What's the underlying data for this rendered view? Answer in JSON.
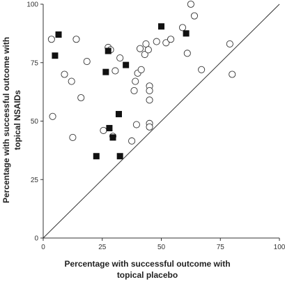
{
  "chart_data": {
    "type": "scatter",
    "xlabel": [
      "Percentage with successful outcome with",
      "topical placebo"
    ],
    "ylabel": [
      "Percentage with successful outcome with",
      "topical NSAIDs"
    ],
    "xlim": [
      0,
      100
    ],
    "ylim": [
      0,
      100
    ],
    "x_ticks": [
      0,
      25,
      50,
      75,
      100
    ],
    "y_ticks": [
      0,
      25,
      50,
      75,
      100
    ],
    "grid": false,
    "reference_line": {
      "from": [
        0,
        0
      ],
      "to": [
        100,
        100
      ],
      "color": "#333333"
    },
    "series": [
      {
        "marker": "open-circle",
        "color": "#333333",
        "points": [
          [
            3.5,
            85
          ],
          [
            4,
            52
          ],
          [
            9,
            70
          ],
          [
            12,
            67
          ],
          [
            12.5,
            43
          ],
          [
            14,
            85
          ],
          [
            16,
            60
          ],
          [
            18.5,
            75.5
          ],
          [
            25.5,
            46
          ],
          [
            27.5,
            81.5
          ],
          [
            28.5,
            80.5
          ],
          [
            29.5,
            43.5
          ],
          [
            30.5,
            71.5
          ],
          [
            32.5,
            77
          ],
          [
            37.5,
            41.5
          ],
          [
            38.5,
            63
          ],
          [
            39,
            67
          ],
          [
            39.5,
            48.5
          ],
          [
            40,
            70.5
          ],
          [
            41,
            81
          ],
          [
            41.5,
            72
          ],
          [
            43,
            78.5
          ],
          [
            43.5,
            83
          ],
          [
            44.5,
            80.5
          ],
          [
            45,
            65
          ],
          [
            45,
            63
          ],
          [
            45,
            59
          ],
          [
            45,
            49
          ],
          [
            45,
            47.5
          ],
          [
            48,
            84
          ],
          [
            52,
            83.5
          ],
          [
            54,
            85
          ],
          [
            59,
            90
          ],
          [
            61,
            79
          ],
          [
            62.5,
            100
          ],
          [
            64,
            95
          ],
          [
            67,
            72
          ],
          [
            79,
            83
          ],
          [
            80,
            70
          ]
        ]
      },
      {
        "marker": "filled-square",
        "color": "#111111",
        "points": [
          [
            5,
            78
          ],
          [
            6.5,
            87
          ],
          [
            22.5,
            35
          ],
          [
            26.5,
            71
          ],
          [
            27.5,
            80
          ],
          [
            28,
            47
          ],
          [
            29.5,
            43
          ],
          [
            32,
            53
          ],
          [
            32.5,
            35
          ],
          [
            35,
            74
          ],
          [
            50,
            90.5
          ],
          [
            60.5,
            87.5
          ]
        ]
      }
    ]
  }
}
